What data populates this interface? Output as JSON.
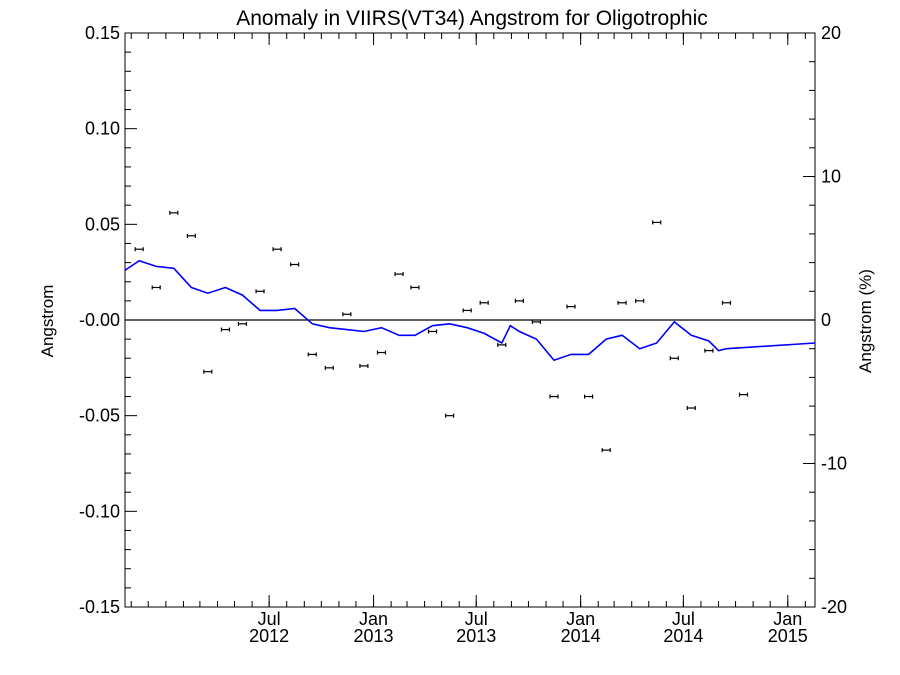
{
  "chart_data": {
    "type": "scatter",
    "title": "Anomaly in VIIRS(VT34) Angstrom for Oligotrophic",
    "ylabel": "Angstrom",
    "y2label": "Angstrom (%)",
    "ylim": [
      -0.15,
      0.15
    ],
    "y2lim": [
      -20,
      20
    ],
    "xlim": [
      "2011-10-21",
      "2015-02-18"
    ],
    "y_ticks": [
      "0.15",
      "0.10",
      "0.05",
      "-0.00",
      "-0.05",
      "-0.10",
      "-0.15"
    ],
    "y2_ticks": [
      "20",
      "10",
      "0",
      "-10",
      "-20"
    ],
    "x_ticks": [
      {
        "date": "2012-07-01",
        "month": "Jul",
        "year": "2012"
      },
      {
        "date": "2013-01-01",
        "month": "Jan",
        "year": "2013"
      },
      {
        "date": "2013-07-01",
        "month": "Jul",
        "year": "2013"
      },
      {
        "date": "2014-01-01",
        "month": "Jan",
        "year": "2014"
      },
      {
        "date": "2014-07-01",
        "month": "Jul",
        "year": "2014"
      },
      {
        "date": "2015-01-01",
        "month": "Jan",
        "year": "2015"
      }
    ],
    "zero_line": 0,
    "series": [
      {
        "marker": "error-bar",
        "color": "#000000",
        "points": [
          [
            "2011-11-15",
            0.037
          ],
          [
            "2011-12-15",
            0.017
          ],
          [
            "2012-01-15",
            0.056
          ],
          [
            "2012-02-15",
            0.044
          ],
          [
            "2012-03-15",
            -0.027
          ],
          [
            "2012-04-15",
            -0.005
          ],
          [
            "2012-05-15",
            -0.002
          ],
          [
            "2012-06-15",
            0.015
          ],
          [
            "2012-07-15",
            0.037
          ],
          [
            "2012-08-15",
            0.029
          ],
          [
            "2012-09-15",
            -0.018
          ],
          [
            "2012-10-15",
            -0.025
          ],
          [
            "2012-11-15",
            0.003
          ],
          [
            "2012-12-15",
            -0.024
          ],
          [
            "2013-01-15",
            -0.017
          ],
          [
            "2013-02-15",
            0.024
          ],
          [
            "2013-03-15",
            0.017
          ],
          [
            "2013-04-15",
            -0.006
          ],
          [
            "2013-05-15",
            -0.05
          ],
          [
            "2013-06-15",
            0.005
          ],
          [
            "2013-07-15",
            0.009
          ],
          [
            "2013-08-15",
            -0.013
          ],
          [
            "2013-09-15",
            0.01
          ],
          [
            "2013-10-15",
            -0.001
          ],
          [
            "2013-11-15",
            -0.04
          ],
          [
            "2013-12-15",
            0.007
          ],
          [
            "2014-01-15",
            -0.04
          ],
          [
            "2014-02-15",
            -0.068
          ],
          [
            "2014-03-15",
            0.009
          ],
          [
            "2014-04-15",
            0.01
          ],
          [
            "2014-05-15",
            0.051
          ],
          [
            "2014-06-15",
            -0.02
          ],
          [
            "2014-07-15",
            -0.046
          ],
          [
            "2014-08-15",
            -0.016
          ],
          [
            "2014-09-15",
            0.009
          ],
          [
            "2014-10-15",
            -0.039
          ]
        ]
      },
      {
        "marker": "line",
        "color": "#0000ff",
        "points": [
          [
            "2011-10-21",
            0.026
          ],
          [
            "2011-11-15",
            0.031
          ],
          [
            "2011-12-15",
            0.028
          ],
          [
            "2012-01-15",
            0.027
          ],
          [
            "2012-02-15",
            0.017
          ],
          [
            "2012-03-15",
            0.014
          ],
          [
            "2012-04-15",
            0.017
          ],
          [
            "2012-05-15",
            0.013
          ],
          [
            "2012-06-15",
            0.005
          ],
          [
            "2012-07-15",
            0.005
          ],
          [
            "2012-08-15",
            0.006
          ],
          [
            "2012-09-15",
            -0.002
          ],
          [
            "2012-10-15",
            -0.004
          ],
          [
            "2012-11-15",
            -0.005
          ],
          [
            "2012-12-15",
            -0.006
          ],
          [
            "2013-01-15",
            -0.004
          ],
          [
            "2013-02-15",
            -0.008
          ],
          [
            "2013-03-15",
            -0.008
          ],
          [
            "2013-04-15",
            -0.003
          ],
          [
            "2013-05-15",
            -0.002
          ],
          [
            "2013-06-15",
            -0.004
          ],
          [
            "2013-07-15",
            -0.007
          ],
          [
            "2013-08-15",
            -0.012
          ],
          [
            "2013-08-30",
            -0.003
          ],
          [
            "2013-09-15",
            -0.006
          ],
          [
            "2013-10-15",
            -0.01
          ],
          [
            "2013-11-15",
            -0.021
          ],
          [
            "2013-12-15",
            -0.018
          ],
          [
            "2014-01-15",
            -0.018
          ],
          [
            "2014-02-15",
            -0.01
          ],
          [
            "2014-03-15",
            -0.008
          ],
          [
            "2014-04-15",
            -0.015
          ],
          [
            "2014-05-15",
            -0.012
          ],
          [
            "2014-06-15",
            -0.001
          ],
          [
            "2014-07-15",
            -0.008
          ],
          [
            "2014-08-15",
            -0.011
          ],
          [
            "2014-09-01",
            -0.016
          ],
          [
            "2014-09-15",
            -0.015
          ],
          [
            "2015-02-18",
            -0.012
          ]
        ]
      }
    ]
  }
}
